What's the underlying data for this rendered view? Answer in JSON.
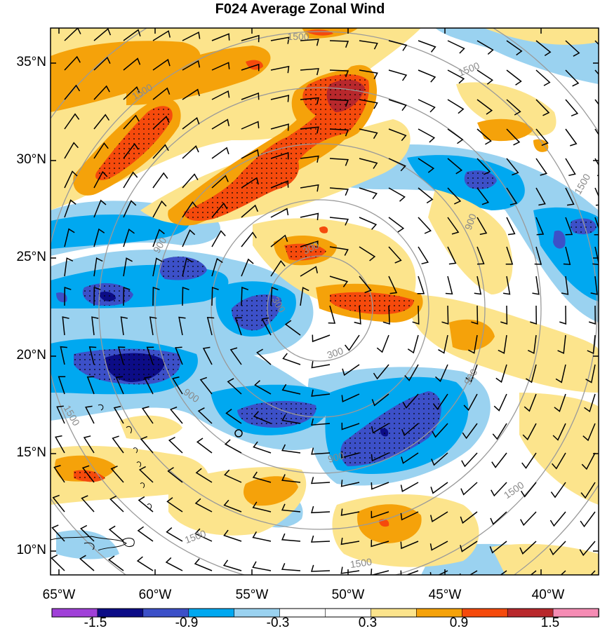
{
  "title": "F024 Average Zonal Wind",
  "map": {
    "region": {
      "lon_min": -65,
      "lon_max": -37.5,
      "lat_min": 8.8,
      "lat_max": 37
    },
    "lat_labels": [
      "35°N",
      "30°N",
      "25°N",
      "20°N",
      "15°N",
      "10°N"
    ],
    "lon_labels": [
      "65°W",
      "60°W",
      "55°W",
      "50°W",
      "45°W",
      "40°W"
    ],
    "contour_labels": [
      "1500",
      "1500",
      "1500",
      "1500",
      "1500",
      "1500",
      "1500",
      "1500",
      "900",
      "900",
      "900",
      "900",
      "900",
      "300",
      "300",
      "300"
    ],
    "overlays": [
      "zonal wind shading",
      "wind barbs",
      "stippling",
      "range rings",
      "coastlines"
    ]
  },
  "colorbar": {
    "labels": [
      "-1.5",
      "-0.9",
      "-0.3",
      "0.3",
      "0.9",
      "1.5"
    ],
    "colors": [
      "#a040d8",
      "#0c0c86",
      "#3c50c8",
      "#00a8f0",
      "#9ad2f0",
      "#ffffff",
      "#ffffff",
      "#fce48c",
      "#f5a20a",
      "#f54a0c",
      "#b8282c",
      "#f58cb4"
    ]
  }
}
